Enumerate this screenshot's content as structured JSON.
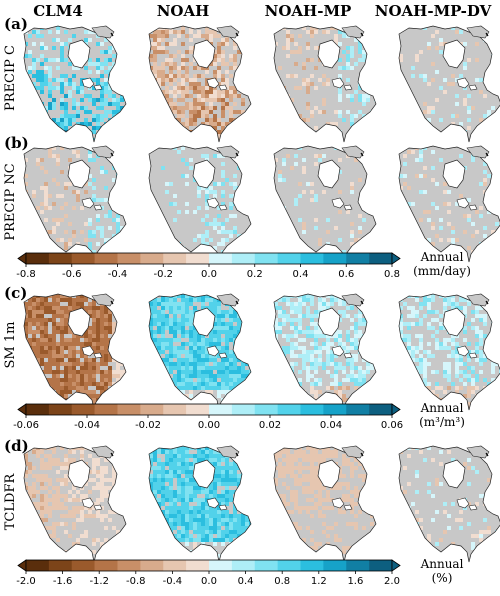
{
  "chart_data": {
    "type": "heatmap",
    "columns": [
      "CLM4",
      "NOAH",
      "NOAH-MP",
      "NOAH-MP-DV"
    ],
    "rows": [
      {
        "letter": "(a)",
        "label": "PRECIP C",
        "colorbar": "precip"
      },
      {
        "letter": "(b)",
        "label": "PRECIP NC",
        "colorbar": "precip"
      },
      {
        "letter": "(c)",
        "label": "SM 1m",
        "colorbar": "sm"
      },
      {
        "letter": "(d)",
        "label": "TCLDFR",
        "colorbar": "tcldfr"
      }
    ],
    "colorbars": {
      "precip": {
        "label_line1": "Annual",
        "label_line2": "(mm/day)",
        "ticks": [
          "-0.8",
          "-0.6",
          "-0.4",
          "-0.2",
          "0.0",
          "0.2",
          "0.4",
          "0.6",
          "0.8"
        ],
        "range": [
          -0.8,
          0.8
        ]
      },
      "sm": {
        "label_line1": "Annual",
        "label_line2": "(m³/m³)",
        "ticks": [
          "-0.06",
          "-0.04",
          "-0.02",
          "0.00",
          "0.02",
          "0.04",
          "0.06"
        ],
        "range": [
          -0.06,
          0.06
        ]
      },
      "tcldfr": {
        "label_line1": "Annual",
        "label_line2": "(%)",
        "ticks": [
          "-2.0",
          "-1.6",
          "-1.2",
          "-0.8",
          "-0.4",
          "0.0",
          "0.4",
          "0.8",
          "1.2",
          "1.6",
          "2.0"
        ],
        "range": [
          -2.0,
          2.0
        ]
      }
    },
    "colors": {
      "negative": [
        "#5a2e0c",
        "#7c4419",
        "#9a5a2c",
        "#b47448",
        "#c88f68",
        "#d8ab8c",
        "#e6c6b0",
        "#f1ddd0"
      ],
      "neutral": "#c8c8c8",
      "positive": [
        "#d6f6fb",
        "#aeeef7",
        "#80e2f1",
        "#52d2ea",
        "#2bbedf",
        "#16a2c8",
        "#117fa4",
        "#0d5f80"
      ]
    },
    "panels": [
      [
        "wet-south",
        "dry-central",
        "mixed-light",
        "near-zero"
      ],
      [
        "mixed-light",
        "wet-central",
        "near-zero",
        "near-zero"
      ],
      [
        "dry-strong",
        "wet-strong",
        "wet-moderate",
        "wet-moderate"
      ],
      [
        "dry-west",
        "wet-strong",
        "dry-north",
        "near-zero"
      ]
    ]
  }
}
